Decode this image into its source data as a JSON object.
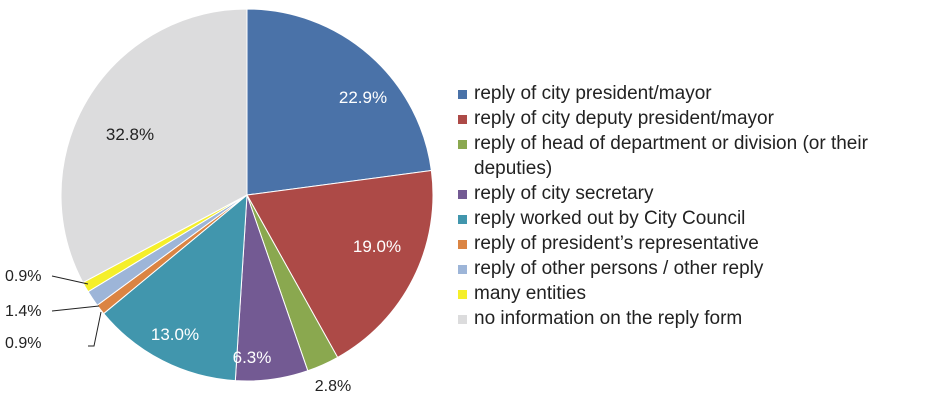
{
  "chart_data": {
    "type": "pie",
    "title": "",
    "start_angle_deg": 0,
    "direction": "clockwise",
    "legend_position": "right",
    "slices": [
      {
        "label": "reply of city president/mayor",
        "value": 22.9,
        "display": "22.9%",
        "color": "#4a72a8",
        "label_color": "#ffffff"
      },
      {
        "label": "reply of city deputy president/mayor",
        "value": 19.0,
        "display": "19.0%",
        "color": "#ad4a47",
        "label_color": "#ffffff"
      },
      {
        "label": "reply of head of department or division (or their deputies)",
        "value": 2.8,
        "display": "2.8%",
        "color": "#8aa84f",
        "label_color": "#222222"
      },
      {
        "label": "reply of city secretary",
        "value": 6.3,
        "display": "6.3%",
        "color": "#735a93",
        "label_color": "#ffffff"
      },
      {
        "label": "reply worked out by City Council",
        "value": 13.0,
        "display": "13.0%",
        "color": "#4196ad",
        "label_color": "#ffffff"
      },
      {
        "label": "reply of president’s representative",
        "value": 0.9,
        "display": "0.9%",
        "color": "#db8443",
        "label_color": "#222222"
      },
      {
        "label": "reply of other persons / other reply",
        "value": 1.4,
        "display": "1.4%",
        "color": "#9db5d8",
        "label_color": "#222222"
      },
      {
        "label": "many entities",
        "value": 0.9,
        "display": "0.9%",
        "color": "#f5ef2a",
        "label_color": "#222222"
      },
      {
        "label": "no information on the reply form",
        "value": 32.8,
        "display": "32.8%",
        "color": "#dcdcdd",
        "label_color": "#222222"
      }
    ]
  }
}
